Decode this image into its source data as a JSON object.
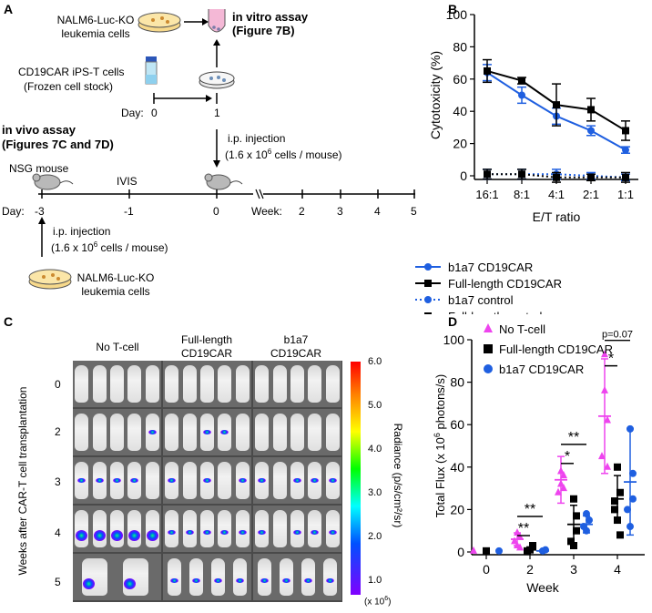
{
  "panelA": {
    "label": "A",
    "nalm6_top": "NALM6-Luc-KO",
    "leukemia_top": "leukemia cells",
    "invitro1": "in vitro assay",
    "invitro2": "(Figure 7B)",
    "ipst1": "CD19CAR iPS-T cells",
    "ipst2": "(Frozen cell stock)",
    "day_label": "Day:",
    "day0": "0",
    "day1": "1",
    "invivo1": "in vivo assay",
    "invivo2": "(Figures 7C and 7D)",
    "ip1_line1": "i.p. injection",
    "ip1_line2": "(1.6 x 10",
    "ip1_sup": "6",
    "ip1_line2b": " cells / mouse)",
    "nsg": "NSG mouse",
    "ivis": "IVIS",
    "day_bottom_label": "Day:",
    "d_m3": "-3",
    "d_m1": "-1",
    "d_0": "0",
    "week_label": "Week:",
    "w2": "2",
    "w3": "3",
    "w4": "4",
    "w5": "5",
    "ip2_line1": "i.p. injection",
    "ip2_line2": "(1.6 x 10",
    "ip2_sup": "6",
    "ip2_line2b": " cells / mouse)",
    "nalm6_bot": "NALM6-Luc-KO",
    "leukemia_bot": "leukemia cells"
  },
  "panelC": {
    "label": "C",
    "col1": "No T-cell",
    "col2a": "Full-length",
    "col2b": "CD19CAR",
    "col3a": "b1a7",
    "col3b": "CD19CAR",
    "rows": [
      "0",
      "2",
      "3",
      "4",
      "5"
    ],
    "ylabel": "Weeks after CAR-T cell transplantation",
    "colorbar_ticks": [
      "6.0",
      "5.0",
      "4.0",
      "3.0",
      "2.0",
      "1.0"
    ],
    "colorbar_unit": "(x 10",
    "colorbar_unit_sup": "6",
    "colorbar_unit_end": ")",
    "radiance_label": "Radiance (p/s/cm²/sr)"
  },
  "chart_data": [
    {
      "panel": "B",
      "type": "line",
      "ylabel": "Cytotoxicity (%)",
      "xlabel": "E/T ratio",
      "categories": [
        "16:1",
        "8:1",
        "4:1",
        "2:1",
        "1:1"
      ],
      "ylim": [
        0,
        100
      ],
      "yticks": [
        "0",
        "20",
        "40",
        "60",
        "80",
        "100"
      ],
      "series": [
        {
          "name": "b1a7 CD19CAR",
          "color": "#1f5fe0",
          "style": "solid",
          "marker": "circle",
          "values": [
            64,
            50,
            37,
            28,
            16
          ],
          "err": [
            5,
            5,
            5,
            3,
            2
          ]
        },
        {
          "name": "Full-length CD19CAR",
          "color": "#000000",
          "style": "solid",
          "marker": "square",
          "values": [
            65,
            59,
            44,
            41,
            28
          ],
          "err": [
            7,
            2,
            13,
            7,
            6
          ]
        },
        {
          "name": "b1a7 control",
          "color": "#1f5fe0",
          "style": "dotted",
          "marker": "circle",
          "values": [
            1,
            1,
            1,
            0,
            -1
          ],
          "err": [
            3,
            3,
            3,
            2,
            2
          ]
        },
        {
          "name": "Full-length control",
          "color": "#000000",
          "style": "dotted",
          "marker": "square",
          "values": [
            1,
            1,
            -1,
            -1,
            -1
          ],
          "err": [
            3,
            3,
            3,
            2,
            3
          ]
        }
      ]
    },
    {
      "panel": "D",
      "type": "scatter",
      "ylabel": "Total Flux (x 10⁶ photons/s)",
      "ylabel_pre": "Total Flux (x 10",
      "ylabel_sup": "6",
      "ylabel_post": " photons/s)",
      "xlabel": "Week",
      "categories": [
        "0",
        "2",
        "3",
        "4"
      ],
      "ylim": [
        0,
        100
      ],
      "yticks": [
        "0",
        "20",
        "40",
        "60",
        "80",
        "100"
      ],
      "series": [
        {
          "name": "No T-cell",
          "color": "#ee44ee",
          "marker": "triangle",
          "points": [
            [
              0,
              0.5
            ],
            [
              1,
              9
            ],
            [
              1,
              7
            ],
            [
              1,
              5
            ],
            [
              1,
              3
            ],
            [
              1,
              2
            ],
            [
              2,
              32
            ],
            [
              2,
              36
            ],
            [
              2,
              28
            ],
            [
              2,
              38
            ],
            [
              2,
              30
            ],
            [
              3,
              93
            ],
            [
              3,
              62
            ],
            [
              3,
              45
            ],
            [
              3,
              76
            ],
            [
              3,
              40
            ]
          ],
          "mean": [
            0.5,
            6,
            34,
            64
          ],
          "sd": [
            0,
            3,
            11,
            27
          ]
        },
        {
          "name": "Full-length CD19CAR",
          "color": "#000000",
          "marker": "square",
          "points": [
            [
              0,
              0.5
            ],
            [
              1,
              1
            ],
            [
              1,
              3
            ],
            [
              1,
              0.5
            ],
            [
              2,
              25
            ],
            [
              2,
              10
            ],
            [
              2,
              5
            ],
            [
              2,
              3
            ],
            [
              2,
              17
            ],
            [
              3,
              40
            ],
            [
              3,
              28
            ],
            [
              3,
              24
            ],
            [
              3,
              15
            ],
            [
              3,
              8
            ],
            [
              3,
              20
            ]
          ],
          "mean": [
            0.5,
            1,
            13,
            25
          ],
          "sd": [
            0,
            1,
            9,
            11
          ]
        },
        {
          "name": "b1a7 CD19CAR",
          "color": "#1f5fe0",
          "marker": "circle",
          "points": [
            [
              0,
              0.5
            ],
            [
              1,
              0.5
            ],
            [
              1,
              1
            ],
            [
              2,
              18
            ],
            [
              2,
              15
            ],
            [
              2,
              12
            ],
            [
              2,
              10
            ],
            [
              3,
              58
            ],
            [
              3,
              37
            ],
            [
              3,
              20
            ],
            [
              3,
              12
            ],
            [
              3,
              25
            ]
          ],
          "mean": [
            0.5,
            0.5,
            13,
            33
          ],
          "sd": [
            0,
            0.3,
            4,
            25
          ]
        }
      ],
      "annotations": [
        {
          "text": "**",
          "week_index": 1,
          "y": 18
        },
        {
          "text": "**",
          "week_index": 1,
          "y": 9
        },
        {
          "text": "**",
          "week_index": 2,
          "y": 52
        },
        {
          "text": "*",
          "week_index": 2,
          "y": 43
        },
        {
          "text": "*",
          "week_index": 3,
          "y": 89
        },
        {
          "text": "p=0.07",
          "week_index": 3,
          "y": 101
        }
      ]
    }
  ]
}
